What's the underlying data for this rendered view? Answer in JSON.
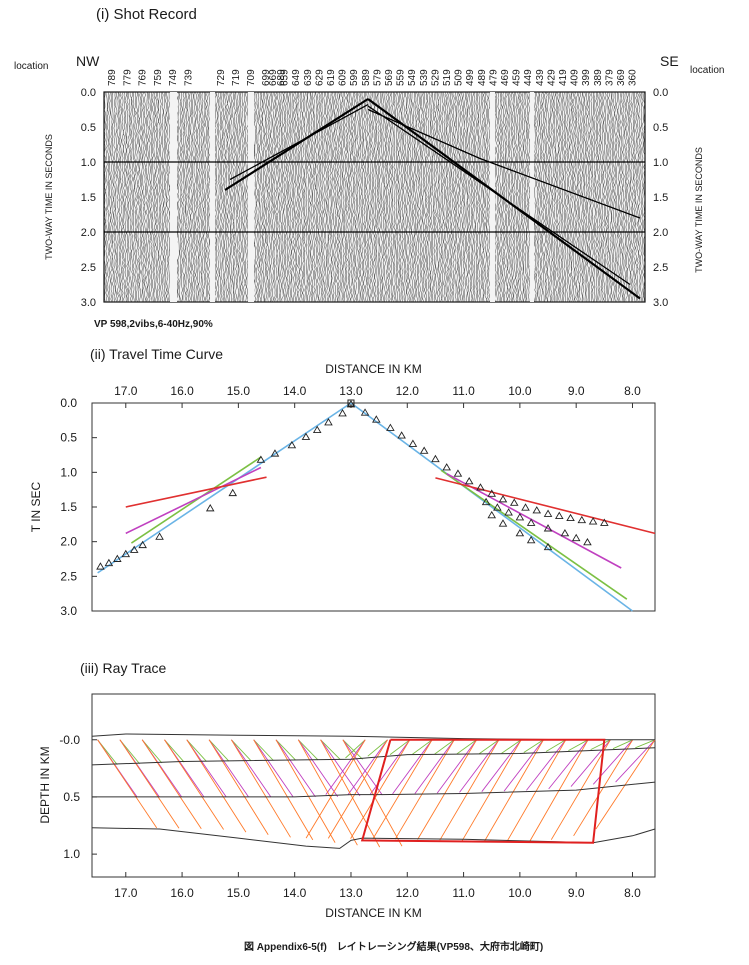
{
  "figure": {
    "section1_title": "(i) Shot Record",
    "section2_title": "(ii) Travel Time Curve",
    "section3_title": "(iii) Ray Trace",
    "caption": "図 Appendix6-5(f)　レイトレーシング結果(VP598、大府市北崎町)"
  },
  "shot_record": {
    "left_label": "NW",
    "right_label": "SE",
    "location_label": "location",
    "vp_label": "VP 598,2vibs,6-40Hz,90%",
    "yaxis_label": "TWO-WAY TIME IN SECONDS",
    "location_ticks": [
      "789",
      "779",
      "769",
      "759",
      "749",
      "739",
      "729",
      "719",
      "709",
      "699",
      "689",
      "669",
      "659",
      "649",
      "639",
      "629",
      "619",
      "609",
      "599",
      "589",
      "579",
      "569",
      "559",
      "549",
      "539",
      "529",
      "519",
      "509",
      "499",
      "489",
      "479",
      "469",
      "459",
      "449",
      "439",
      "429",
      "419",
      "409",
      "399",
      "389",
      "379",
      "369",
      "360"
    ],
    "time_ticks": [
      "0.0",
      "0.5",
      "1.0",
      "1.5",
      "2.0",
      "2.5",
      "3.0"
    ]
  },
  "chart_data": [
    {
      "type": "line",
      "name": "travel-time-curve",
      "title": "(ii) Travel Time Curve",
      "xlabel": "DISTANCE IN KM",
      "ylabel": "T IN SEC",
      "xlim": [
        17.6,
        7.6
      ],
      "ylim": [
        3.0,
        0.0
      ],
      "x_ticks": [
        17.0,
        16.0,
        15.0,
        14.0,
        13.0,
        12.0,
        11.0,
        10.0,
        9.0,
        8.0
      ],
      "y_ticks": [
        0.0,
        0.5,
        1.0,
        1.5,
        2.0,
        2.5,
        3.0
      ],
      "observed_picks": {
        "marker": "triangle",
        "x": [
          17.45,
          17.3,
          17.15,
          17.0,
          16.85,
          16.7,
          16.4,
          15.5,
          15.1,
          14.6,
          14.35,
          14.05,
          13.8,
          13.6,
          13.4,
          13.15,
          13.0,
          12.75,
          12.55,
          12.3,
          12.1,
          11.9,
          11.7,
          11.5,
          11.3,
          11.1,
          10.9,
          10.7,
          10.5,
          10.3,
          10.1,
          9.9,
          9.7,
          9.5,
          9.3,
          9.1,
          8.9,
          8.7,
          8.5,
          10.6,
          10.4,
          10.2,
          10.0,
          9.8,
          9.5,
          9.2,
          9.0,
          8.8,
          10.5,
          10.3,
          10.0,
          9.8,
          9.5
        ],
        "t": [
          2.36,
          2.31,
          2.25,
          2.18,
          2.12,
          2.05,
          1.93,
          1.52,
          1.3,
          0.82,
          0.73,
          0.61,
          0.49,
          0.39,
          0.28,
          0.15,
          0.02,
          0.14,
          0.24,
          0.36,
          0.47,
          0.59,
          0.69,
          0.81,
          0.93,
          1.02,
          1.13,
          1.22,
          1.31,
          1.39,
          1.44,
          1.51,
          1.55,
          1.6,
          1.63,
          1.66,
          1.69,
          1.71,
          1.73,
          1.43,
          1.51,
          1.58,
          1.65,
          1.73,
          1.81,
          1.88,
          1.95,
          2.01,
          1.62,
          1.74,
          1.88,
          1.98,
          2.08
        ]
      },
      "series": [
        {
          "color": "#6ab4e6",
          "x": [
            17.5,
            13.0
          ],
          "t": [
            2.45,
            0.0
          ]
        },
        {
          "color": "#6ab4e6",
          "x": [
            13.0,
            8.0
          ],
          "t": [
            0.0,
            3.0
          ]
        },
        {
          "color": "#7cc044",
          "x": [
            16.9,
            14.6
          ],
          "t": [
            2.02,
            0.78
          ]
        },
        {
          "color": "#7cc044",
          "x": [
            11.4,
            8.1
          ],
          "t": [
            0.97,
            2.83
          ]
        },
        {
          "color": "#c040c0",
          "x": [
            17.0,
            14.6
          ],
          "t": [
            1.88,
            0.93
          ]
        },
        {
          "color": "#c040c0",
          "x": [
            11.3,
            8.2
          ],
          "t": [
            1.02,
            2.38
          ]
        },
        {
          "color": "#e03030",
          "x": [
            17.0,
            14.5
          ],
          "t": [
            1.5,
            1.07
          ]
        },
        {
          "color": "#e03030",
          "x": [
            11.5,
            7.6
          ],
          "t": [
            1.08,
            1.88
          ]
        }
      ]
    },
    {
      "type": "line",
      "name": "ray-trace",
      "title": "(iii) Ray Trace",
      "xlabel": "DISTANCE IN KM",
      "ylabel": "DEPTH IN KM",
      "xlim": [
        17.6,
        7.6
      ],
      "ylim": [
        1.2,
        -0.4
      ],
      "x_ticks": [
        17.0,
        16.0,
        15.0,
        14.0,
        13.0,
        12.0,
        11.0,
        10.0,
        9.0,
        8.0
      ],
      "y_ticks": [
        -0.0,
        0.5,
        1.0
      ],
      "y_tick_labels": [
        "-0.0",
        "0.5",
        "1.0"
      ],
      "layers": [
        {
          "x": [
            17.6,
            17.0,
            15.0,
            13.0,
            11.0,
            9.0,
            7.6
          ],
          "depth": [
            -0.03,
            -0.05,
            -0.04,
            -0.03,
            -0.01,
            0.0,
            0.0
          ]
        },
        {
          "x": [
            17.6,
            16.0,
            13.0,
            12.0,
            10.0,
            7.6
          ],
          "depth": [
            0.22,
            0.19,
            0.17,
            0.13,
            0.12,
            0.07
          ]
        },
        {
          "x": [
            17.6,
            16.0,
            14.0,
            13.0,
            12.5,
            11.0,
            9.0,
            7.6
          ],
          "depth": [
            0.5,
            0.5,
            0.5,
            0.48,
            0.48,
            0.47,
            0.44,
            0.37
          ]
        },
        {
          "x": [
            17.6,
            16.4,
            15.0,
            13.8,
            13.2,
            13.0,
            12.8,
            11.0,
            9.5,
            8.7,
            8.0,
            7.6
          ],
          "depth": [
            0.77,
            0.78,
            0.86,
            0.93,
            0.95,
            0.88,
            0.86,
            0.87,
            0.89,
            0.9,
            0.84,
            0.78
          ]
        }
      ],
      "highlight_body": {
        "color": "#e02020",
        "x": [
          12.3,
          12.8,
          8.7,
          8.5,
          12.3
        ],
        "depth": [
          0.0,
          0.88,
          0.9,
          0.0,
          0.0
        ]
      }
    }
  ]
}
